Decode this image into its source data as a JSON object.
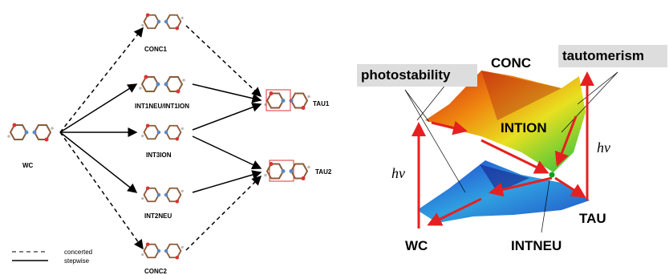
{
  "pathways": {
    "nodes": [
      {
        "label": "WC"
      },
      {
        "label": "CONC1"
      },
      {
        "label": "INT1NEU/INT1ION"
      },
      {
        "label": "INT3ION"
      },
      {
        "label": "INT2NEU"
      },
      {
        "label": "CONC2"
      },
      {
        "label": "TAU1"
      },
      {
        "label": "TAU2"
      }
    ],
    "legend": [
      "concerted",
      "stepwise"
    ]
  },
  "surface": {
    "callouts": [
      "photostability",
      "tautomerism"
    ],
    "labels": [
      "CONC",
      "INTION",
      "WC",
      "TAU",
      "INTNEU"
    ],
    "excitation": [
      "hν",
      "hν"
    ]
  }
}
